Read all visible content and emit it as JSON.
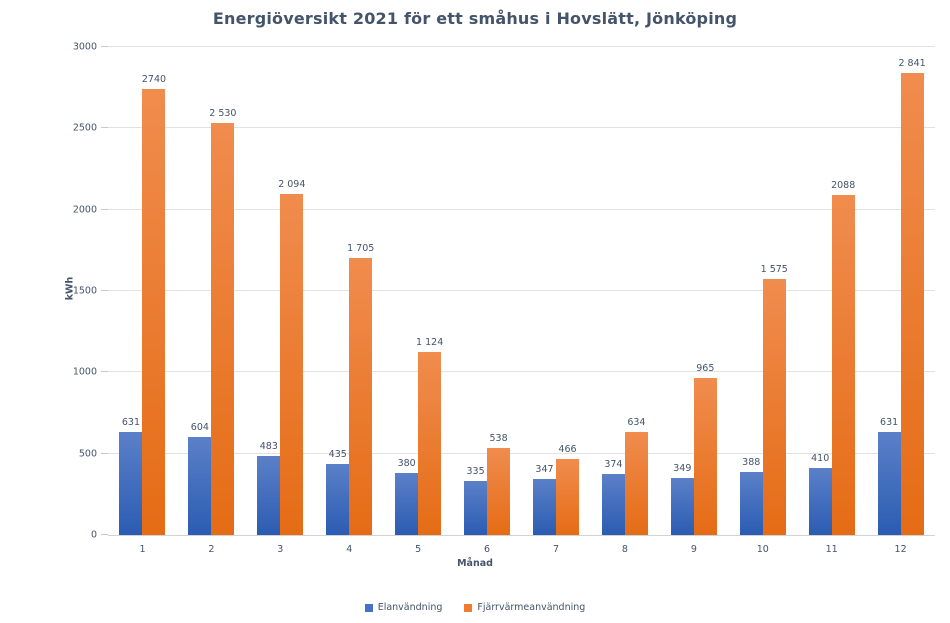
{
  "chart_data": {
    "type": "bar",
    "title": "Energiöversikt 2021 för ett småhus i Hovslätt, Jönköping",
    "xlabel": "Månad",
    "ylabel": "kWh",
    "ylim": [
      0,
      3000
    ],
    "ytick_step": 500,
    "y_ticks": [
      "0",
      "500",
      "1000",
      "1500",
      "2000",
      "2500",
      "3000"
    ],
    "grid": true,
    "legend_position": "bottom",
    "categories": [
      "1",
      "2",
      "3",
      "4",
      "5",
      "6",
      "7",
      "8",
      "9",
      "10",
      "11",
      "12"
    ],
    "series": [
      {
        "name": "Elanvändning",
        "key": "elanvandning",
        "legend_color": "#4472C4",
        "gradient_top": "#5B80C8",
        "gradient_bottom": "#2B5CB2",
        "values": [
          631,
          604,
          483,
          435,
          380,
          335,
          347,
          374,
          349,
          388,
          410,
          631
        ],
        "labels": [
          "631",
          "604",
          "483",
          "435",
          "380",
          "335",
          "347",
          "374",
          "349",
          "388",
          "410",
          "631"
        ]
      },
      {
        "name": "Fjärrvärmeanvändning",
        "key": "fjarrvarmeanvandning",
        "legend_color": "#ED7D31",
        "gradient_top": "#F08C4E",
        "gradient_bottom": "#E56C15",
        "values": [
          2740,
          2530,
          2094,
          1705,
          1124,
          538,
          466,
          634,
          965,
          1575,
          2088,
          2841
        ],
        "labels": [
          "2740",
          "2 530",
          "2 094",
          "1 705",
          "1 124",
          "538",
          "466",
          "634",
          "965",
          "1 575",
          "2088",
          "2 841"
        ]
      }
    ],
    "colors": {
      "text": "#44546A",
      "gridline": "#E2E2E2",
      "axis_line": "#D2D2D2",
      "background": "#FFFFFF"
    }
  }
}
